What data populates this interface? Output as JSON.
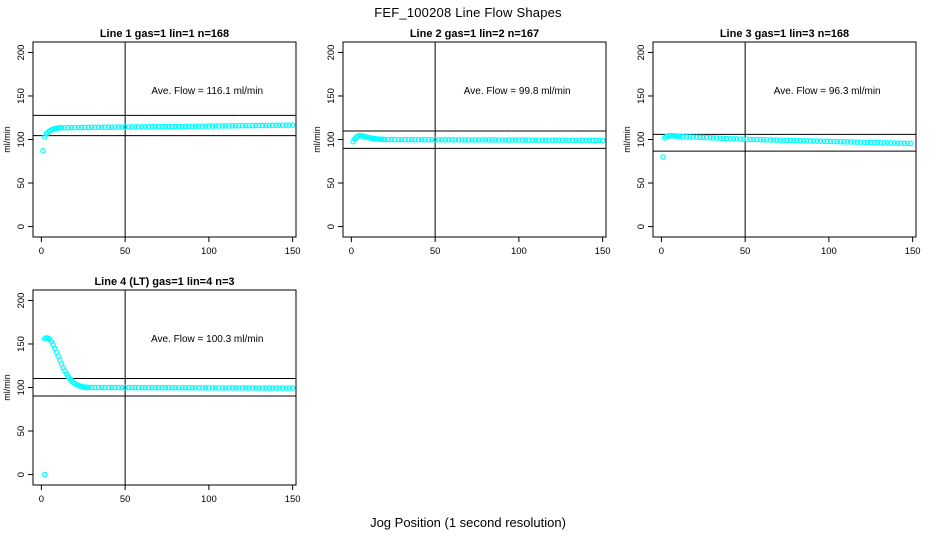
{
  "page_title": "FEF_100208  Line Flow Shapes",
  "xlabel": "Jog Position (1 second resolution)",
  "colors": {
    "points": "#00FFFF",
    "axis": "#000000",
    "background": "#FFFFFF",
    "text": "#000000"
  },
  "chart_data": [
    {
      "type": "scatter",
      "title": "Line 1 gas=1 lin=1 n=168",
      "ylabel": "ml/min",
      "annotation": "Ave. Flow =  116.1  ml/min",
      "ave_flow_ml_min": 116.1,
      "n": 168,
      "xticks": [
        0,
        50,
        100,
        150
      ],
      "yticks": [
        0,
        50,
        100,
        150,
        200
      ],
      "xlim": [
        -5,
        152
      ],
      "ylim": [
        -12,
        212
      ],
      "vline_x": 50,
      "hlines": [
        104.5,
        127.7
      ],
      "annotation_xy": [
        99,
        152
      ],
      "points": [
        [
          1,
          87
        ],
        [
          2,
          103
        ],
        [
          3,
          106.3
        ],
        [
          4,
          108.5
        ],
        [
          5,
          110
        ],
        [
          6,
          111.1
        ],
        [
          7,
          111.9
        ],
        [
          8,
          112.5
        ],
        [
          9,
          112.9
        ],
        [
          10,
          113.2
        ],
        [
          11,
          113.4
        ],
        {
          "run": [
            12,
            150,
            2,
            113.5,
            116.5
          ]
        }
      ]
    },
    {
      "type": "scatter",
      "title": "Line 2 gas=1 lin=2 n=167",
      "ylabel": "ml/min",
      "annotation": "Ave. Flow =  99.8  ml/min",
      "ave_flow_ml_min": 99.8,
      "n": 167,
      "xticks": [
        0,
        50,
        100,
        150
      ],
      "yticks": [
        0,
        50,
        100,
        150,
        200
      ],
      "xlim": [
        -5,
        152
      ],
      "ylim": [
        -12,
        212
      ],
      "vline_x": 50,
      "hlines": [
        89.8,
        109.8
      ],
      "annotation_xy": [
        99,
        152
      ],
      "points": [
        [
          1,
          97.5
        ],
        [
          2,
          100.6
        ],
        [
          3,
          102.6
        ],
        [
          4,
          103.9
        ],
        [
          5,
          104.4
        ],
        [
          6,
          104.2
        ],
        [
          7,
          103.8
        ],
        [
          8,
          103.3
        ],
        [
          9,
          102.8
        ],
        [
          10,
          102.3
        ],
        [
          11,
          101.9
        ],
        [
          12,
          101.5
        ],
        [
          13,
          101.2
        ],
        [
          14,
          100.9
        ],
        [
          15,
          100.7
        ],
        [
          16,
          100.5
        ],
        [
          17,
          100.3
        ],
        [
          18,
          100.2
        ],
        [
          19,
          100.1
        ],
        [
          20,
          100
        ],
        {
          "run": [
            22,
            150,
            2,
            99.9,
            99.0
          ]
        }
      ]
    },
    {
      "type": "scatter",
      "title": "Line 3 gas=1 lin=3 n=168",
      "ylabel": "ml/min",
      "annotation": "Ave. Flow =  96.3  ml/min",
      "ave_flow_ml_min": 96.3,
      "n": 168,
      "xticks": [
        0,
        50,
        100,
        150
      ],
      "yticks": [
        0,
        50,
        100,
        150,
        200
      ],
      "xlim": [
        -5,
        152
      ],
      "ylim": [
        -12,
        212
      ],
      "vline_x": 50,
      "hlines": [
        86.7,
        105.9
      ],
      "annotation_xy": [
        99,
        152
      ],
      "points": [
        [
          1,
          80
        ],
        [
          2,
          101.8
        ],
        [
          3,
          103.2
        ],
        [
          4,
          103.9
        ],
        [
          5,
          104.3
        ],
        [
          6,
          104.4
        ],
        [
          7,
          104.3
        ],
        [
          8,
          104.1
        ],
        [
          9,
          103.9
        ],
        [
          10,
          103.7
        ],
        {
          "run": [
            11,
            49,
            2,
            103.5,
            100.3
          ]
        },
        {
          "run": [
            51,
            150,
            2,
            100.2,
            95.4
          ]
        }
      ]
    },
    {
      "type": "scatter",
      "title": "Line 4 (LT) gas=1 lin=4 n=3",
      "ylabel": "ml/min",
      "annotation": "Ave. Flow =  100.3  ml/min",
      "ave_flow_ml_min": 100.3,
      "n": 3,
      "xticks": [
        0,
        50,
        100,
        150
      ],
      "yticks": [
        0,
        50,
        100,
        150,
        200
      ],
      "xlim": [
        -5,
        152
      ],
      "ylim": [
        -12,
        212
      ],
      "vline_x": 50,
      "hlines": [
        90.3,
        110.3
      ],
      "annotation_xy": [
        99,
        152
      ],
      "points": [
        [
          2,
          0
        ],
        [
          2,
          156
        ],
        [
          3,
          157
        ],
        [
          4,
          156.6
        ],
        [
          5,
          155.3
        ],
        [
          6,
          152.5
        ],
        [
          7,
          149
        ],
        [
          8,
          145
        ],
        [
          9,
          140.5
        ],
        [
          10,
          136
        ],
        [
          11,
          131.5
        ],
        [
          12,
          127
        ],
        [
          13,
          122.8
        ],
        [
          14,
          119
        ],
        [
          15,
          115.6
        ],
        [
          16,
          112.6
        ],
        [
          17,
          110
        ],
        [
          18,
          107.8
        ],
        [
          19,
          106
        ],
        [
          20,
          104.5
        ],
        [
          21,
          103.3
        ],
        [
          22,
          102.4
        ],
        [
          23,
          101.7
        ],
        [
          24,
          101.1
        ],
        [
          25,
          100.7
        ],
        [
          26,
          100.4
        ],
        [
          27,
          100.2
        ],
        [
          28,
          100.1
        ],
        {
          "run": [
            30,
            150,
            2,
            100,
            99.3
          ]
        }
      ]
    }
  ]
}
